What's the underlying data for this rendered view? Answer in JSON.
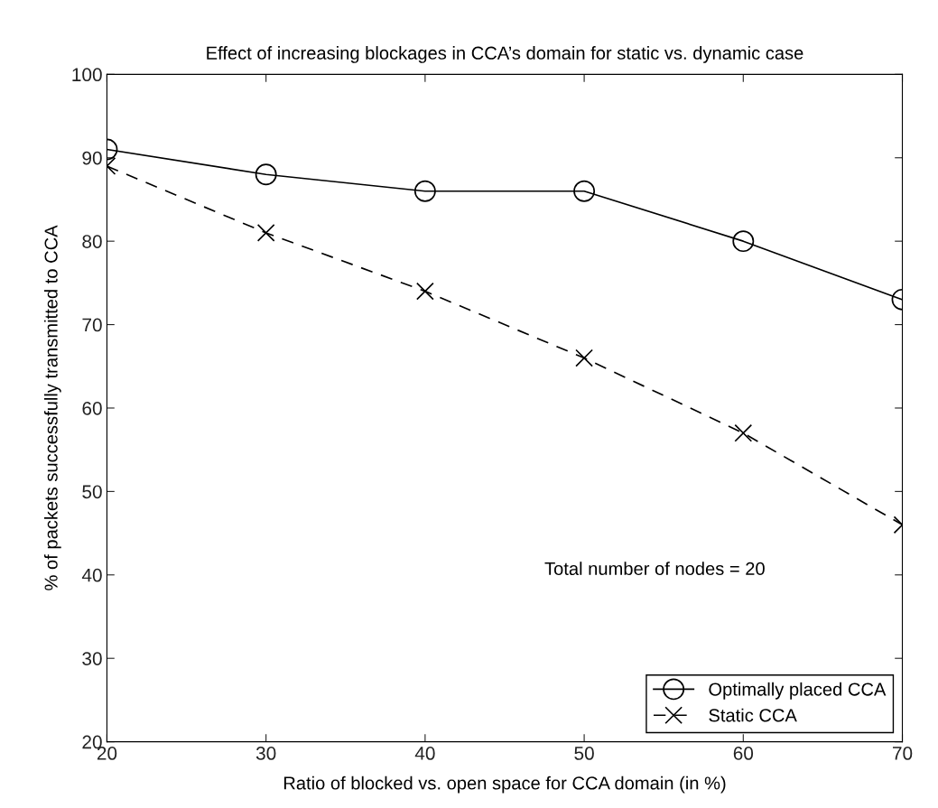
{
  "chart_data": {
    "type": "line",
    "title": "Effect of increasing blockages in CCA’s domain for static vs. dynamic case",
    "xlabel": "Ratio of blocked vs. open space for CCA domain (in %)",
    "ylabel": "% of packets successfully transmitted to CCA",
    "x": [
      20,
      30,
      40,
      50,
      60,
      70
    ],
    "series": [
      {
        "name": "Optimally placed CCA",
        "color": "#000000",
        "values": [
          91,
          88,
          86,
          86,
          80,
          73
        ],
        "marker": "circle",
        "line_style": "solid"
      },
      {
        "name": "Static CCA",
        "color": "#000000",
        "values": [
          89,
          81,
          74,
          66,
          57,
          46
        ],
        "marker": "cross",
        "line_style": "dashed"
      }
    ],
    "xlim": [
      20,
      70
    ],
    "xticks": [
      20,
      30,
      40,
      50,
      60,
      70
    ],
    "ylim": [
      20,
      100
    ],
    "yticks": [
      20,
      30,
      40,
      50,
      60,
      70,
      80,
      90,
      100
    ],
    "annotations": [
      "Total number of nodes = 20"
    ],
    "grid": false,
    "legend": "bottom right"
  }
}
